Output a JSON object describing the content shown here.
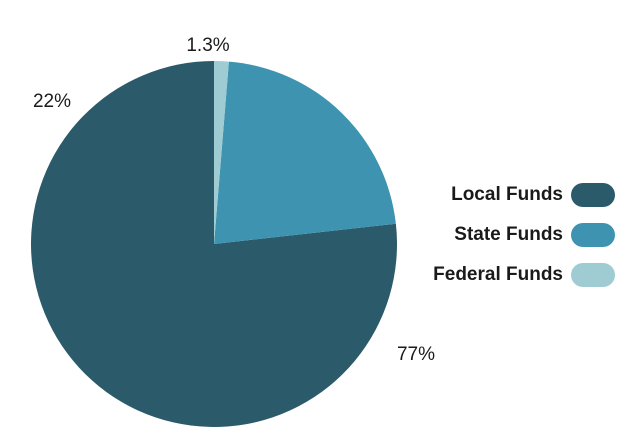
{
  "chart_data": {
    "type": "pie",
    "categories": [
      "Local Funds",
      "State Funds",
      "Federal Funds"
    ],
    "values": [
      77,
      22,
      1.3
    ],
    "data_labels": [
      "77%",
      "22%",
      "1.3%"
    ],
    "colors": [
      "#2b5a6b",
      "#3e94b0",
      "#9fcbd3"
    ],
    "legend_position": "right"
  }
}
